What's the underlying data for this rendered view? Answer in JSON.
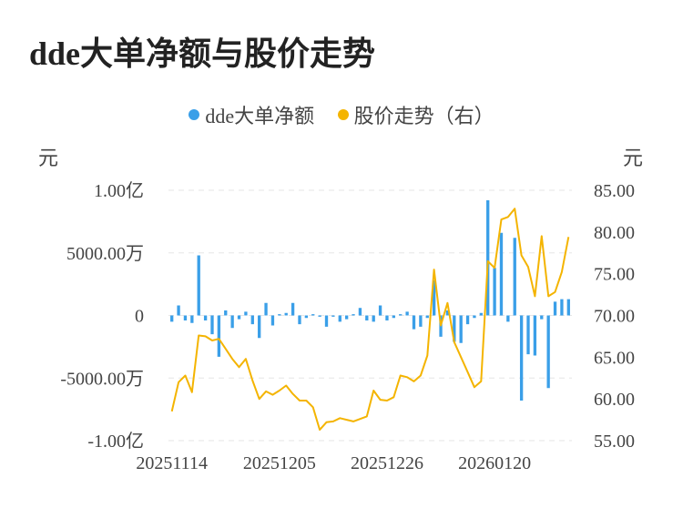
{
  "title": "dde大单净额与股价走势",
  "colors": {
    "bar": "#3a9fe8",
    "line": "#f4b400",
    "grid": "#e6e6e6"
  },
  "chart_data": {
    "type": "bar+line",
    "legend": [
      {
        "label": "dde大单净额",
        "color": "#3a9fe8"
      },
      {
        "label": "股价走势（右）",
        "color": "#f4b400"
      }
    ],
    "left_unit": "元",
    "right_unit": "元",
    "left_ticks": [
      "1.00亿",
      "5000.00万",
      "0",
      "-5000.00万",
      "-1.00亿"
    ],
    "right_ticks": [
      "85.00",
      "80.00",
      "75.00",
      "70.00",
      "65.00",
      "60.00",
      "55.00"
    ],
    "left_ylim": [
      -10000,
      10000
    ],
    "right_ylim": [
      55,
      85
    ],
    "x_tick_labels": [
      "20251114",
      "20251205",
      "20251226",
      "20260120"
    ],
    "x_tick_indices": [
      0,
      16,
      32,
      48
    ],
    "grid": true,
    "legend_position": "top",
    "series": [
      {
        "name": "dde大单净额",
        "axis": "left",
        "type": "bar",
        "unit": "万元",
        "values": [
          -500,
          800,
          -400,
          -600,
          4800,
          -400,
          -1500,
          -3300,
          400,
          -1000,
          -300,
          300,
          -700,
          -1800,
          1000,
          -800,
          100,
          200,
          1000,
          -700,
          -200,
          100,
          -100,
          -900,
          -100,
          -500,
          -300,
          100,
          600,
          -400,
          -500,
          800,
          -400,
          -200,
          100,
          300,
          -1100,
          -900,
          -200,
          2800,
          -1700,
          400,
          -2100,
          -2200,
          -700,
          -200,
          200,
          9200,
          3800,
          6600,
          -500,
          6200,
          -6800,
          -3100,
          -3200,
          -300,
          -5800,
          1100,
          1300,
          1300
        ]
      },
      {
        "name": "股价走势（右）",
        "axis": "right",
        "type": "line",
        "values": [
          58.5,
          62.0,
          62.8,
          60.8,
          67.6,
          67.5,
          67.0,
          67.2,
          66.0,
          64.8,
          63.8,
          64.8,
          62.2,
          60.0,
          60.9,
          60.5,
          61.0,
          61.6,
          60.6,
          59.8,
          59.8,
          59.0,
          56.3,
          57.2,
          57.3,
          57.7,
          57.5,
          57.3,
          57.6,
          57.9,
          61.0,
          59.9,
          59.8,
          60.2,
          62.8,
          62.6,
          62.1,
          62.8,
          65.2,
          75.5,
          68.8,
          71.5,
          66.8,
          65.0,
          63.2,
          61.4,
          62.1,
          76.5,
          75.7,
          81.5,
          81.8,
          82.8,
          77.2,
          75.8,
          72.3,
          79.5,
          72.3,
          72.8,
          75.2,
          79.4
        ]
      }
    ]
  }
}
